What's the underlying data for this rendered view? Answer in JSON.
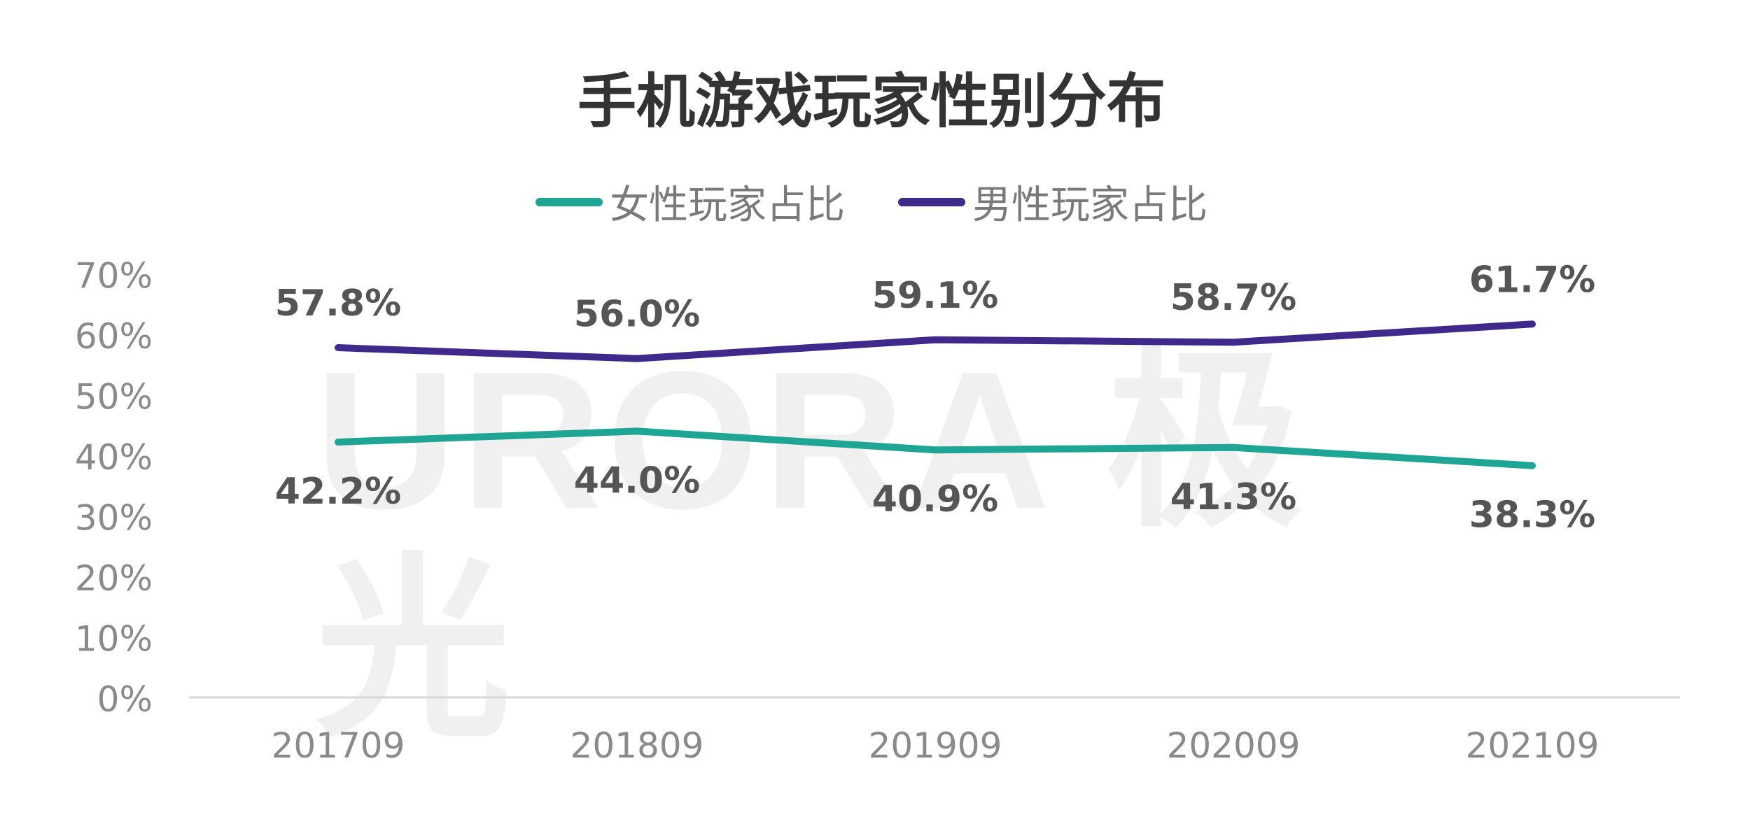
{
  "chart_data": {
    "type": "line",
    "title": "手机游戏玩家性别分布",
    "categories": [
      "201709",
      "201809",
      "201909",
      "202009",
      "202109"
    ],
    "ylim": [
      0,
      70
    ],
    "yticks": [
      "0%",
      "10%",
      "20%",
      "30%",
      "40%",
      "50%",
      "60%",
      "70%"
    ],
    "grid": false,
    "legend_position": "top-center",
    "series": [
      {
        "name": "女性玩家占比",
        "values": [
          42.2,
          44.0,
          40.9,
          41.3,
          38.3
        ],
        "labels": [
          "42.2%",
          "44.0%",
          "40.9%",
          "41.3%",
          "38.3%"
        ],
        "color": "#1fa594"
      },
      {
        "name": "男性玩家占比",
        "values": [
          57.8,
          56.0,
          59.1,
          58.7,
          61.7
        ],
        "labels": [
          "57.8%",
          "56.0%",
          "59.1%",
          "58.7%",
          "61.7%"
        ],
        "color": "#3f2a8c"
      }
    ]
  },
  "watermark": "URORA 极光"
}
